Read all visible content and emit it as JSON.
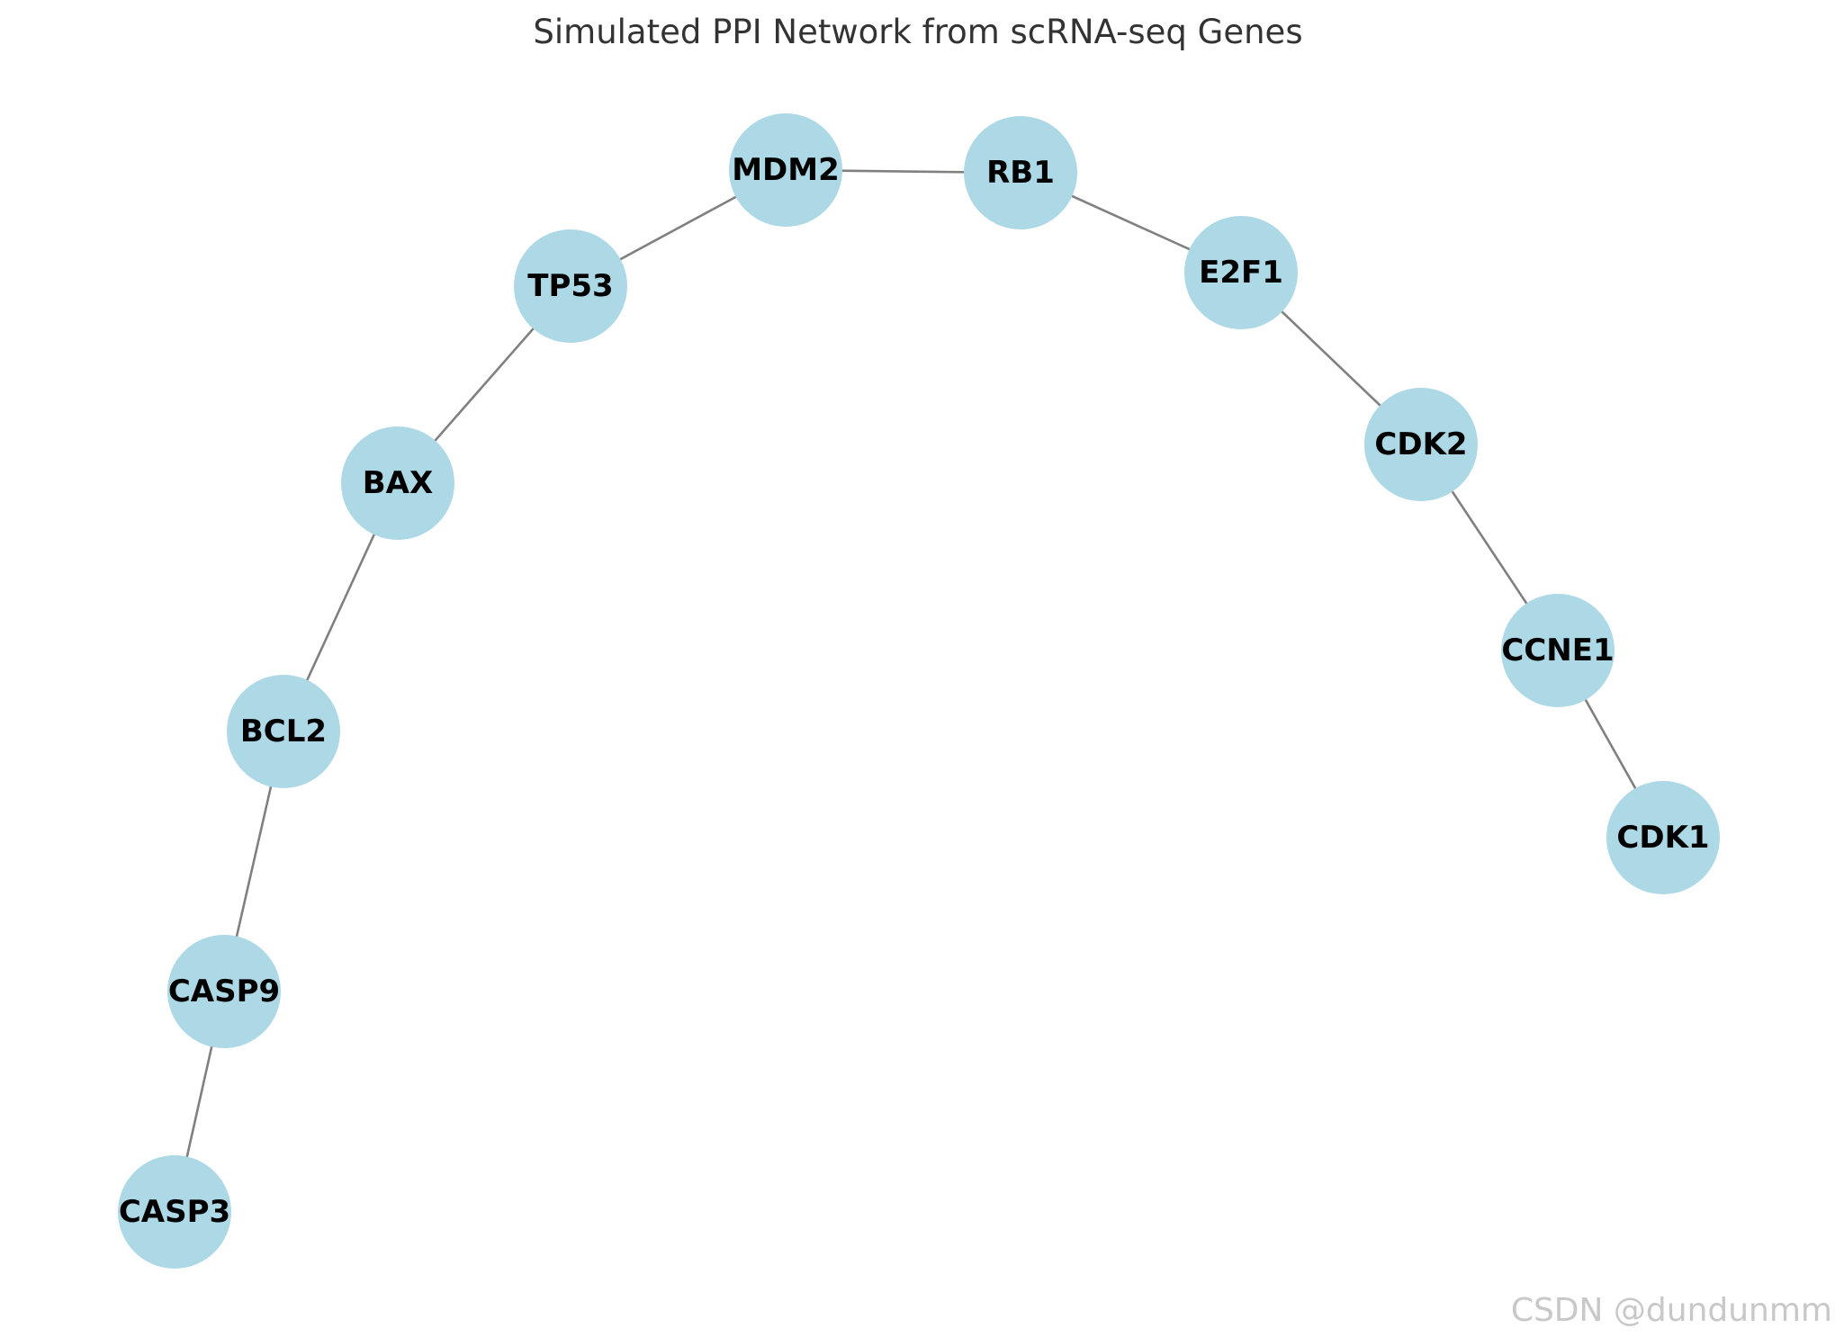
{
  "title": "Simulated PPI Network from scRNA-seq Genes",
  "watermark": "CSDN @dundunmm",
  "colors": {
    "node_fill": "#add8e6",
    "edge": "#808080",
    "title": "#333333",
    "label": "#000000",
    "watermark": "#c8c8c8"
  },
  "nodes": [
    {
      "id": "MDM2",
      "label": "MDM2"
    },
    {
      "id": "RB1",
      "label": "RB1"
    },
    {
      "id": "TP53",
      "label": "TP53"
    },
    {
      "id": "E2F1",
      "label": "E2F1"
    },
    {
      "id": "BAX",
      "label": "BAX"
    },
    {
      "id": "CDK2",
      "label": "CDK2"
    },
    {
      "id": "CCNE1",
      "label": "CCNE1"
    },
    {
      "id": "BCL2",
      "label": "BCL2"
    },
    {
      "id": "CDK1",
      "label": "CDK1"
    },
    {
      "id": "CASP9",
      "label": "CASP9"
    },
    {
      "id": "CASP3",
      "label": "CASP3"
    }
  ],
  "edges": [
    {
      "source": "MDM2",
      "target": "RB1"
    },
    {
      "source": "MDM2",
      "target": "TP53"
    },
    {
      "source": "RB1",
      "target": "E2F1"
    },
    {
      "source": "TP53",
      "target": "BAX"
    },
    {
      "source": "E2F1",
      "target": "CDK2"
    },
    {
      "source": "BAX",
      "target": "BCL2"
    },
    {
      "source": "CDK2",
      "target": "CCNE1"
    },
    {
      "source": "BCL2",
      "target": "CASP9"
    },
    {
      "source": "CCNE1",
      "target": "CDK1"
    },
    {
      "source": "CASP9",
      "target": "CASP3"
    }
  ]
}
